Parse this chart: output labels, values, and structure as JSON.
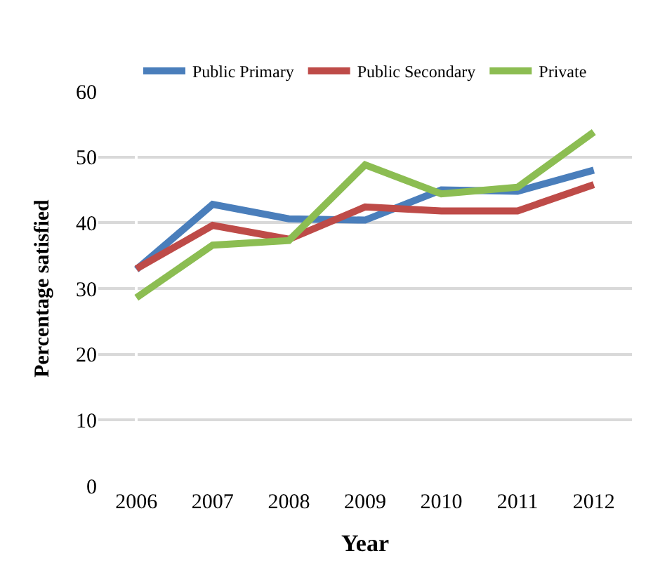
{
  "chart_data": {
    "type": "line",
    "xlabel": "Year",
    "ylabel": "Percentage satisfied",
    "categories": [
      "2006",
      "2007",
      "2008",
      "2009",
      "2010",
      "2011",
      "2012"
    ],
    "series": [
      {
        "name": "Public Primary",
        "color": "#4a7ebb",
        "values": [
          32.9,
          42.8,
          40.6,
          40.4,
          45.0,
          44.8,
          48.0
        ]
      },
      {
        "name": "Public Secondary",
        "color": "#be4b48",
        "values": [
          33.0,
          39.6,
          37.5,
          42.4,
          41.8,
          41.8,
          45.8
        ]
      },
      {
        "name": "Private",
        "color": "#8cbd52",
        "values": [
          28.6,
          36.6,
          37.3,
          48.8,
          44.4,
          45.4,
          53.8
        ]
      }
    ],
    "ylim": [
      0,
      60
    ],
    "yticks": [
      0,
      10,
      20,
      30,
      40,
      50,
      60
    ],
    "grid": "y",
    "legend": "top",
    "marker": "none",
    "line_style": "solid"
  }
}
